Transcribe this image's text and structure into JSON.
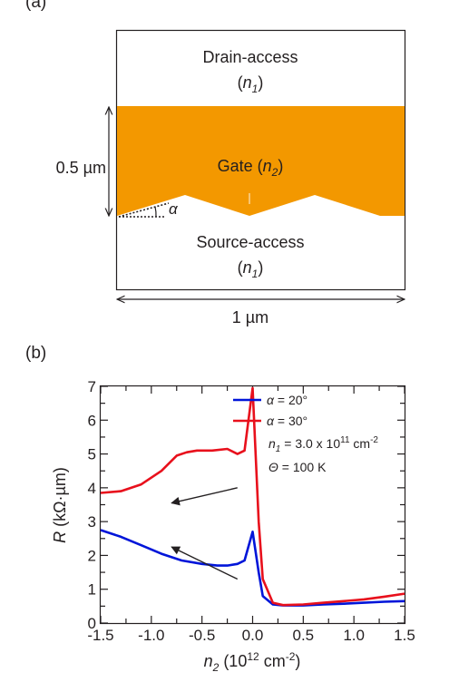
{
  "panel_a": {
    "label": "(a)",
    "drain_label": "Drain-access",
    "drain_sub": {
      "open": "(",
      "var": "n",
      "sub": "1",
      "close": ")"
    },
    "gate_label": {
      "text": "Gate (",
      "var": "n",
      "sub": "2",
      "close": ")"
    },
    "source_label": "Source-access",
    "source_sub": {
      "open": "(",
      "var": "n",
      "sub": "1",
      "close": ")"
    },
    "height_label": "0.5 µm",
    "width_label": "1 µm",
    "angle_label": "α",
    "gate_color": "#f39800"
  },
  "panel_b": {
    "label": "(b)",
    "legend": [
      {
        "prefix": "α",
        "text": " = 20°",
        "color": "#0015d9"
      },
      {
        "prefix": "α",
        "text": " = 30°",
        "color": "#e8101c"
      }
    ],
    "note_n1": {
      "var": "n",
      "sub": "1",
      "text": " = 3.0 x 10",
      "sup": "11",
      "unit": " cm",
      "unit_sup": "-2"
    },
    "note_theta": {
      "var": "Θ",
      "text": " = 100 K"
    }
  },
  "chart_data": {
    "type": "line",
    "xlabel": {
      "var": "n",
      "sub": "2",
      "text": " (10",
      "sup": "12",
      "unit": " cm",
      "unit_sup": "-2",
      "close": ")"
    },
    "ylabel": {
      "var": "R",
      "text": " (kΩ·µm)"
    },
    "xlim": [
      -1.5,
      1.5
    ],
    "ylim": [
      0,
      7
    ],
    "xticks": [
      -1.5,
      -1.0,
      -0.5,
      0.0,
      0.5,
      1.0,
      1.5
    ],
    "xtick_labels": [
      "-1.5",
      "-1.0",
      "-0.5",
      "0.0",
      "0.5",
      "1.0",
      "1.5"
    ],
    "yticks": [
      0,
      1,
      2,
      3,
      4,
      5,
      6,
      7
    ],
    "ytick_labels": [
      "0",
      "1",
      "2",
      "3",
      "4",
      "5",
      "6",
      "7"
    ],
    "series": [
      {
        "name": "α = 20°",
        "color": "#0015d9",
        "x": [
          -1.5,
          -1.3,
          -1.1,
          -0.9,
          -0.7,
          -0.5,
          -0.35,
          -0.25,
          -0.15,
          -0.08,
          0.0,
          0.06,
          0.1,
          0.2,
          0.3,
          0.5,
          0.7,
          0.9,
          1.1,
          1.3,
          1.5
        ],
        "y": [
          2.75,
          2.55,
          2.3,
          2.05,
          1.85,
          1.75,
          1.7,
          1.7,
          1.75,
          1.85,
          2.7,
          1.5,
          0.8,
          0.55,
          0.52,
          0.52,
          0.55,
          0.57,
          0.6,
          0.63,
          0.65
        ]
      },
      {
        "name": "α = 30°",
        "color": "#e8101c",
        "x": [
          -1.5,
          -1.3,
          -1.1,
          -0.9,
          -0.75,
          -0.65,
          -0.55,
          -0.4,
          -0.25,
          -0.15,
          -0.08,
          0.0,
          0.06,
          0.1,
          0.2,
          0.3,
          0.5,
          0.7,
          0.9,
          1.1,
          1.3,
          1.5
        ],
        "y": [
          3.85,
          3.9,
          4.1,
          4.5,
          4.95,
          5.05,
          5.1,
          5.1,
          5.15,
          5.0,
          5.1,
          6.95,
          3.0,
          1.3,
          0.6,
          0.53,
          0.55,
          0.6,
          0.65,
          0.7,
          0.78,
          0.87
        ]
      }
    ],
    "annotations": [
      {
        "type": "arrow",
        "from": [
          -0.15,
          4.0
        ],
        "to": [
          -0.8,
          3.55
        ]
      },
      {
        "type": "arrow",
        "from": [
          -0.15,
          1.3
        ],
        "to": [
          -0.8,
          2.25
        ]
      }
    ]
  }
}
